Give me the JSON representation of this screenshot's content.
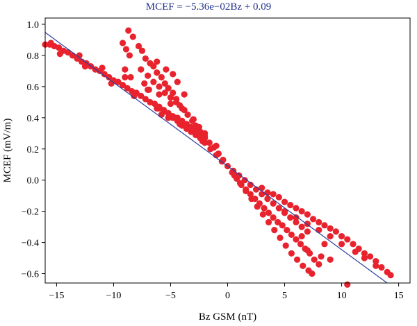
{
  "chart_data": {
    "type": "scatter",
    "title": "MCEF = −5.36e−02Bz + 0.09",
    "xlabel": "Bz GSM (nT)",
    "ylabel": "MCEF (mV/m)",
    "xlim": [
      -16,
      16
    ],
    "ylim": [
      -0.66,
      1.04
    ],
    "x_ticks": [
      -15,
      -10,
      -5,
      0,
      5,
      10,
      15
    ],
    "x_tick_labels": [
      "−15",
      "−10",
      "−5",
      "0",
      "5",
      "10",
      "15"
    ],
    "y_ticks": [
      -0.6,
      -0.4,
      -0.2,
      0.0,
      0.2,
      0.4,
      0.6,
      0.8,
      1.0
    ],
    "y_tick_labels": [
      "−0.6",
      "−0.4",
      "−0.2",
      "0.0",
      "0.2",
      "0.4",
      "0.6",
      "0.8",
      "1.0"
    ],
    "grid": false,
    "point_color": "#e8232e",
    "line_color": "#2b3f9e",
    "fit_line": {
      "slope": -0.0536,
      "intercept": 0.09
    },
    "series": [
      {
        "points": [
          [
            -16,
            0.87
          ],
          [
            -15.6,
            0.87
          ],
          [
            -15.2,
            0.86
          ],
          [
            -14.8,
            0.85
          ],
          [
            -14.4,
            0.83
          ],
          [
            -14,
            0.82
          ],
          [
            -13.6,
            0.8
          ],
          [
            -13.2,
            0.78
          ],
          [
            -12.8,
            0.76
          ],
          [
            -12.4,
            0.75
          ],
          [
            -12,
            0.73
          ],
          [
            -11.6,
            0.71
          ],
          [
            -11.2,
            0.7
          ],
          [
            -10.8,
            0.68
          ],
          [
            -10.4,
            0.66
          ],
          [
            -10,
            0.64
          ],
          [
            -9.6,
            0.63
          ],
          [
            -9.2,
            0.61
          ],
          [
            -8.8,
            0.59
          ],
          [
            -8.4,
            0.57
          ],
          [
            -8,
            0.56
          ],
          [
            -7.6,
            0.54
          ],
          [
            -7.2,
            0.52
          ],
          [
            -6.8,
            0.5
          ],
          [
            -6.4,
            0.49
          ],
          [
            -6,
            0.47
          ],
          [
            -5.6,
            0.45
          ],
          [
            -5.2,
            0.43
          ],
          [
            -4.8,
            0.41
          ],
          [
            -4.4,
            0.4
          ],
          [
            -4,
            0.38
          ],
          [
            -3.6,
            0.36
          ],
          [
            -3.2,
            0.34
          ],
          [
            -2.8,
            0.32
          ],
          [
            -2.4,
            0.3
          ],
          [
            -2,
            0.27
          ],
          [
            -1.6,
            0.24
          ],
          [
            -1.2,
            0.21
          ],
          [
            -0.8,
            0.17
          ],
          [
            -0.4,
            0.13
          ],
          [
            0,
            0.09
          ],
          [
            -15.5,
            0.88
          ],
          [
            -13,
            0.8
          ],
          [
            -11,
            0.72
          ],
          [
            -9,
            0.66
          ],
          [
            -7,
            0.58
          ],
          [
            -5,
            0.49
          ],
          [
            -3,
            0.39
          ],
          [
            -1,
            0.22
          ],
          [
            -14.7,
            0.81
          ],
          [
            -12.5,
            0.73
          ],
          [
            -10.2,
            0.62
          ],
          [
            -8.2,
            0.54
          ],
          [
            -6.2,
            0.46
          ],
          [
            -4.2,
            0.36
          ],
          [
            -2.2,
            0.25
          ],
          [
            -8.7,
            0.96
          ],
          [
            -8.3,
            0.92
          ],
          [
            -8.6,
            0.8
          ],
          [
            -8.9,
            0.84
          ],
          [
            -9.2,
            0.88
          ],
          [
            -7.8,
            0.86
          ],
          [
            -7.5,
            0.83
          ],
          [
            -7.2,
            0.78
          ],
          [
            -6.8,
            0.75
          ],
          [
            -6.5,
            0.73
          ],
          [
            -6.2,
            0.69
          ],
          [
            -5.8,
            0.66
          ],
          [
            -5.5,
            0.62
          ],
          [
            -5.2,
            0.59
          ],
          [
            -4.8,
            0.56
          ],
          [
            -4.5,
            0.52
          ],
          [
            -4.2,
            0.48
          ],
          [
            -3.8,
            0.45
          ],
          [
            -3.5,
            0.42
          ],
          [
            -3.1,
            0.38
          ],
          [
            -2.8,
            0.35
          ],
          [
            -2.4,
            0.31
          ],
          [
            -2,
            0.28
          ],
          [
            -7.6,
            0.71
          ],
          [
            -7,
            0.67
          ],
          [
            -6.5,
            0.63
          ],
          [
            -6,
            0.6
          ],
          [
            -5.5,
            0.56
          ],
          [
            -5,
            0.53
          ],
          [
            -4.5,
            0.5
          ],
          [
            -4,
            0.46
          ],
          [
            -3.5,
            0.42
          ],
          [
            -3,
            0.39
          ],
          [
            -2.5,
            0.34
          ],
          [
            -2,
            0.3
          ],
          [
            -4.8,
            0.68
          ],
          [
            -4.4,
            0.63
          ],
          [
            -5.4,
            0.71
          ],
          [
            -6.2,
            0.76
          ],
          [
            -3.8,
            0.55
          ],
          [
            -8.5,
            0.66
          ],
          [
            -9,
            0.71
          ],
          [
            -7.3,
            0.62
          ],
          [
            -6.9,
            0.58
          ],
          [
            -6,
            0.55
          ],
          [
            -6,
            0.46
          ],
          [
            -5.6,
            0.44
          ],
          [
            -5.8,
            0.42
          ],
          [
            -5.2,
            0.4
          ],
          [
            -4.8,
            0.4
          ],
          [
            -4.4,
            0.38
          ],
          [
            -4,
            0.35
          ],
          [
            -3.6,
            0.33
          ],
          [
            -3.2,
            0.31
          ],
          [
            -2.8,
            0.29
          ],
          [
            -2.4,
            0.27
          ],
          [
            -2,
            0.24
          ],
          [
            -1.5,
            0.2
          ],
          [
            -1,
            0.16
          ],
          [
            -0.5,
            0.12
          ],
          [
            0.4,
            0.05
          ],
          [
            0.8,
            0.01
          ],
          [
            1.2,
            -0.03
          ],
          [
            1.6,
            -0.06
          ],
          [
            2,
            -0.09
          ],
          [
            2.4,
            -0.12
          ],
          [
            2.8,
            -0.15
          ],
          [
            3.2,
            -0.18
          ],
          [
            3.6,
            -0.21
          ],
          [
            4,
            -0.24
          ],
          [
            4.4,
            -0.27
          ],
          [
            4.8,
            -0.29
          ],
          [
            5.2,
            -0.32
          ],
          [
            5.6,
            -0.35
          ],
          [
            6,
            -0.38
          ],
          [
            6.4,
            -0.41
          ],
          [
            6.8,
            -0.44
          ],
          [
            7.2,
            -0.47
          ],
          [
            7.6,
            -0.51
          ],
          [
            8,
            -0.54
          ],
          [
            0.5,
            0.06
          ],
          [
            1,
            0.03
          ],
          [
            1.5,
            0.0
          ],
          [
            2,
            -0.03
          ],
          [
            2.5,
            -0.06
          ],
          [
            3,
            -0.09
          ],
          [
            3.5,
            -0.12
          ],
          [
            4,
            -0.15
          ],
          [
            4.5,
            -0.18
          ],
          [
            5,
            -0.21
          ],
          [
            5.5,
            -0.24
          ],
          [
            6,
            -0.27
          ],
          [
            6.5,
            -0.3
          ],
          [
            7,
            -0.33
          ],
          [
            0.6,
            0.03
          ],
          [
            1.1,
            -0.02
          ],
          [
            1.6,
            -0.07
          ],
          [
            2.1,
            -0.12
          ],
          [
            2.6,
            -0.17
          ],
          [
            3.1,
            -0.22
          ],
          [
            3.6,
            -0.27
          ],
          [
            4.1,
            -0.32
          ],
          [
            4.6,
            -0.37
          ],
          [
            5.1,
            -0.42
          ],
          [
            5.6,
            -0.47
          ],
          [
            6.1,
            -0.51
          ],
          [
            6.6,
            -0.55
          ],
          [
            7.1,
            -0.58
          ],
          [
            7.4,
            -0.6
          ],
          [
            3,
            -0.05
          ],
          [
            3.5,
            -0.08
          ],
          [
            4,
            -0.09
          ],
          [
            4.5,
            -0.11
          ],
          [
            5,
            -0.14
          ],
          [
            5.5,
            -0.16
          ],
          [
            6,
            -0.18
          ],
          [
            6.5,
            -0.2
          ],
          [
            7,
            -0.22
          ],
          [
            7.5,
            -0.25
          ],
          [
            8,
            -0.27
          ],
          [
            8.5,
            -0.29
          ],
          [
            9,
            -0.31
          ],
          [
            9.5,
            -0.33
          ],
          [
            10,
            -0.36
          ],
          [
            10.5,
            -0.38
          ],
          [
            11,
            -0.41
          ],
          [
            11.5,
            -0.44
          ],
          [
            12,
            -0.47
          ],
          [
            12.5,
            -0.49
          ],
          [
            13,
            -0.52
          ],
          [
            13.5,
            -0.56
          ],
          [
            14,
            -0.59
          ],
          [
            14.3,
            -0.61
          ],
          [
            5,
            -0.2
          ],
          [
            6,
            -0.24
          ],
          [
            7,
            -0.28
          ],
          [
            8,
            -0.32
          ],
          [
            9,
            -0.36
          ],
          [
            10,
            -0.41
          ],
          [
            6.5,
            -0.36
          ],
          [
            7,
            -0.45
          ],
          [
            8.5,
            -0.41
          ],
          [
            9,
            -0.51
          ],
          [
            8.2,
            -0.49
          ],
          [
            10.5,
            -0.67
          ],
          [
            13,
            -0.55
          ],
          [
            12,
            -0.5
          ],
          [
            11.2,
            -0.46
          ]
        ]
      }
    ]
  }
}
